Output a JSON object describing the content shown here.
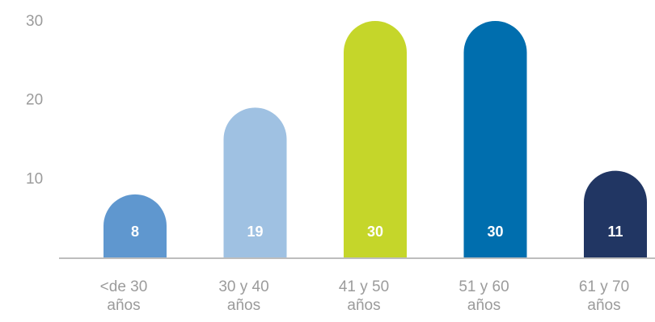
{
  "chart_data": {
    "type": "bar",
    "categories": [
      [
        "<de 30",
        "años"
      ],
      [
        "30 y 40",
        "años"
      ],
      [
        "41 y 50",
        "años"
      ],
      [
        "51 y 60",
        "años"
      ],
      [
        "61 y 70",
        "años"
      ]
    ],
    "values": [
      8,
      19,
      30,
      30,
      11
    ],
    "data_labels": [
      "8",
      "19",
      "30",
      "30",
      "11"
    ],
    "bar_colors": [
      "#5f97cf",
      "#9fc1e2",
      "#c5d62a",
      "#006eae",
      "#213663"
    ],
    "yticks": [
      "30",
      "20",
      "10"
    ],
    "ylim": [
      0,
      30
    ],
    "grid": false,
    "legend": "none",
    "axis_color": "#bdbdbd",
    "tick_color": "#9b9b9b"
  }
}
